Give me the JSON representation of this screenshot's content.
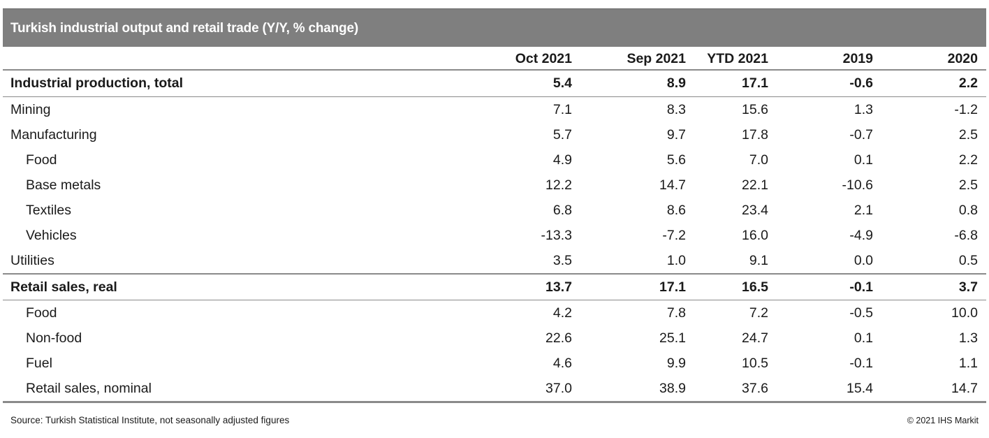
{
  "title": "Turkish industrial output and retail trade (Y/Y, % change)",
  "columns": [
    "Oct 2021",
    "Sep 2021",
    "YTD 2021",
    "2019",
    "2020"
  ],
  "rows": [
    {
      "label": "Industrial production, total",
      "values": [
        "5.4",
        "8.9",
        "17.1",
        "-0.6",
        "2.2"
      ],
      "bold": true,
      "indent": false
    },
    {
      "label": "Mining",
      "values": [
        "7.1",
        "8.3",
        "15.6",
        "1.3",
        "-1.2"
      ],
      "bold": false,
      "indent": false
    },
    {
      "label": "Manufacturing",
      "values": [
        "5.7",
        "9.7",
        "17.8",
        "-0.7",
        "2.5"
      ],
      "bold": false,
      "indent": false
    },
    {
      "label": "Food",
      "values": [
        "4.9",
        "5.6",
        "7.0",
        "0.1",
        "2.2"
      ],
      "bold": false,
      "indent": true
    },
    {
      "label": "Base metals",
      "values": [
        "12.2",
        "14.7",
        "22.1",
        "-10.6",
        "2.5"
      ],
      "bold": false,
      "indent": true
    },
    {
      "label": "Textiles",
      "values": [
        "6.8",
        "8.6",
        "23.4",
        "2.1",
        "0.8"
      ],
      "bold": false,
      "indent": true
    },
    {
      "label": "Vehicles",
      "values": [
        "-13.3",
        "-7.2",
        "16.0",
        "-4.9",
        "-6.8"
      ],
      "bold": false,
      "indent": true
    },
    {
      "label": "Utilities",
      "values": [
        "3.5",
        "1.0",
        "9.1",
        "0.0",
        "0.5"
      ],
      "bold": false,
      "indent": false
    },
    {
      "label": "Retail sales, real",
      "values": [
        "13.7",
        "17.1",
        "16.5",
        "-0.1",
        "3.7"
      ],
      "bold": true,
      "indent": false
    },
    {
      "label": "Food",
      "values": [
        "4.2",
        "7.8",
        "7.2",
        "-0.5",
        "10.0"
      ],
      "bold": false,
      "indent": true
    },
    {
      "label": "Non-food",
      "values": [
        "22.6",
        "25.1",
        "24.7",
        "0.1",
        "1.3"
      ],
      "bold": false,
      "indent": true
    },
    {
      "label": "Fuel",
      "values": [
        "4.6",
        "9.9",
        "10.5",
        "-0.1",
        "1.1"
      ],
      "bold": false,
      "indent": true
    },
    {
      "label": "Retail sales, nominal",
      "values": [
        "37.0",
        "38.9",
        "37.6",
        "15.4",
        "14.7"
      ],
      "bold": false,
      "indent": true
    }
  ],
  "footer": {
    "source": "Source: Turkish Statistical Institute, not seasonally adjusted figures",
    "copyright": "© 2021 IHS Markit"
  },
  "colors": {
    "title_bar": "#7f7f7f",
    "rules": "#8a8a8a"
  }
}
